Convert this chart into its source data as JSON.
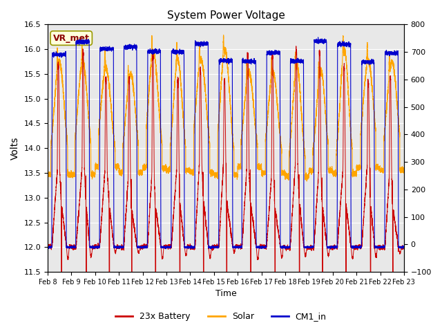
{
  "title": "System Power Voltage",
  "xlabel": "Time",
  "ylabel": "Volts",
  "xlim_days": [
    0,
    15
  ],
  "ylim_left": [
    11.5,
    16.5
  ],
  "ylim_right": [
    -100,
    800
  ],
  "xtick_labels": [
    "Feb 8",
    "Feb 9",
    "Feb 10",
    "Feb 11",
    "Feb 12",
    "Feb 13",
    "Feb 14",
    "Feb 15",
    "Feb 16",
    "Feb 17",
    "Feb 18",
    "Feb 19",
    "Feb 20",
    "Feb 21",
    "Feb 22",
    "Feb 23"
  ],
  "annotation_text": "VR_met",
  "annotation_color": "#8B0000",
  "annotation_bg": "#FFFFDD",
  "bg_color": "#E8E8E8",
  "grid_color": "#FFFFFF",
  "line_colors": {
    "battery": "#CC0000",
    "solar": "#FFA500",
    "cm1": "#0000CC"
  },
  "legend_labels": [
    "23x Battery",
    "Solar",
    "CM1_in"
  ],
  "n_days": 15,
  "pts_per_day": 500
}
